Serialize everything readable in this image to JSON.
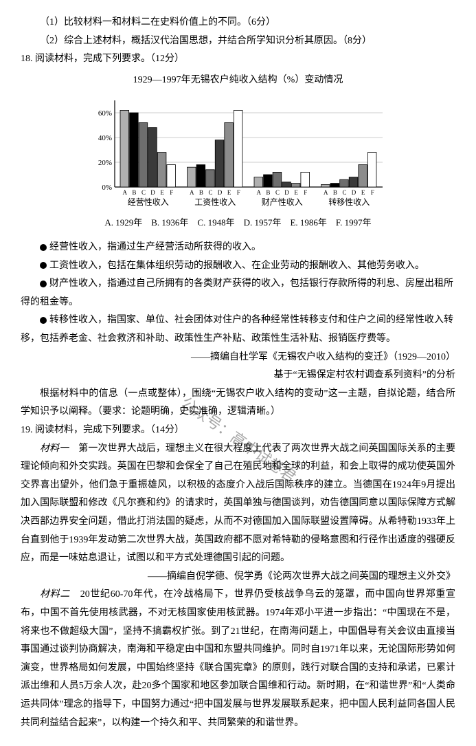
{
  "q17_1": "（1）比较材料一和材料二在史料价值上的不同。（6分）",
  "q17_2": "（2）综合上述材料，概括汉代治国思想，并结合所学知识分析其原因。（8分）",
  "q18_head": "18. 阅读材料，完成下列要求。（12分）",
  "chart": {
    "title": "1929—1997年无锡农户纯收入结构（%）变动情况",
    "ylabel_ticks": [
      "0%",
      "20%",
      "40%",
      "60%"
    ],
    "ymax": 70,
    "groups": [
      {
        "name": "经营性收入",
        "values": [
          62,
          60,
          52,
          48,
          28,
          18
        ]
      },
      {
        "name": "工资性收入",
        "values": [
          16,
          18,
          14,
          38,
          52,
          62
        ]
      },
      {
        "name": "财产性收入",
        "values": [
          8,
          10,
          12,
          4,
          3,
          12
        ]
      },
      {
        "name": "转移性收入",
        "values": [
          2,
          3,
          6,
          8,
          18,
          28
        ]
      }
    ],
    "bar_letters": [
      "A",
      "B",
      "C",
      "D",
      "E",
      "F"
    ],
    "bar_colors": [
      "#b0b0b0",
      "#000000",
      "#6e6e6e",
      "#3a3a3a",
      "#8c8c8c",
      "#ffffff"
    ],
    "bar_stroke": "#000000",
    "axis_color": "#000000",
    "grid_color": "#cccccc",
    "background": "#ffffff",
    "legend_line": "A. 1929年　B. 1936年　C. 1948年　D. 1957年　E. 1986年　F. 1997年"
  },
  "notes": {
    "n1": "经营性收入，指通过生产经营活动所获得的收入。",
    "n2": "工资性收入，包括在集体组织劳动的报酬收入、在企业劳动的报酬收入、其他劳务收入。",
    "n3": "财产性收入，指通过自己所拥有的各类财产获得的收入，包括银行存款所得的利息、房屋出租所得的租金等。",
    "n4": "转移性收入，指国家、单位、社会团体对住户的各种经常性转移支付和住户之间的经常性收入转移，包括养老金、社会救济和补助、政策性生产补贴、政策性生活补贴、报销医疗费等。"
  },
  "src1_a": "——摘编自杜学军《无锡农户收入结构的变迁》（1929—2010）",
  "src1_b": "基于“无锡保定村农村调查系列资料”的分析",
  "q18_task": "根据材料中的信息（一点或整体），围绕“无锡农户收入结构的变动”这一主题，自拟论题，结合所学知识予以阐释。（要求：论题明确，史实准确，逻辑清晰。）",
  "q19_head": "19. 阅读材料，完成下列要求。（14分）",
  "m1_label": "材料一",
  "m1_body": "　第一次世界大战后，理想主义在很大程度上代表了两次世界大战之间英国国际关系的主要理论倾向和外交实践。英国在巴黎和会保全了自己在殖民地和全球的利益，和会上取得的成功使英国外交界喜出望外，他们急于重振雄风，以积极的态度介入战后国际秩序的建立。当德国在1924年9月提出加入国际联盟和修改《凡尔赛和约》的请求时，英国单独与德国谈判，劝告德国同意以国际保障方式解决西部边界安全问题，借此打消法国的疑虑，从而不对德国加入国际联盟设置障碍。从希特勒1933年上台直到他于1939年发动第二次世界大战，英国政府都不愿对希特勒的侵略意图和行径作出适度的强硬反应，而是一味姑息退让，试图以和平方式处理德国引起的问题。",
  "src2": "——摘编自倪学德、倪学勇《论两次世界大战之间英国的理想主义外交》",
  "m2_label": "材料二",
  "m2_body": "　20世纪60-70年代，在冷战格局下，世界仍受核战争乌云的笼罩，而中国向世界郑重宣布，中国不首先使用核武器，不对无核国家使用核武器。1974年邓小平进一步指出：“中国现在不是，将来也不做超级大国”，坚持不搞霸权扩张。到了21世纪，在南海问题上，中国倡导有关会议由直接当事国通过谈判协商解决，南海和平稳定由中国和东盟共同维护。同时自1971年以来，无论国际形势如何演变，世界格局如何发展，中国始终坚持《联合国宪章》的原则，践行对联合国的支持和承诺，已累计派出维和人员5万余人次，赴20多个国家和地区参加联合国维和行动。新时期，在“和谐世界”和“人类命运共同体”理念的指导下，中国努力通过“把中国发展与世界发展联系起来，把中国人民利益同各国人民共同利益结合起来”，以构建一个持久和平、共同繁荣的和谐世界。",
  "watermark": "公众号：高中试卷君"
}
